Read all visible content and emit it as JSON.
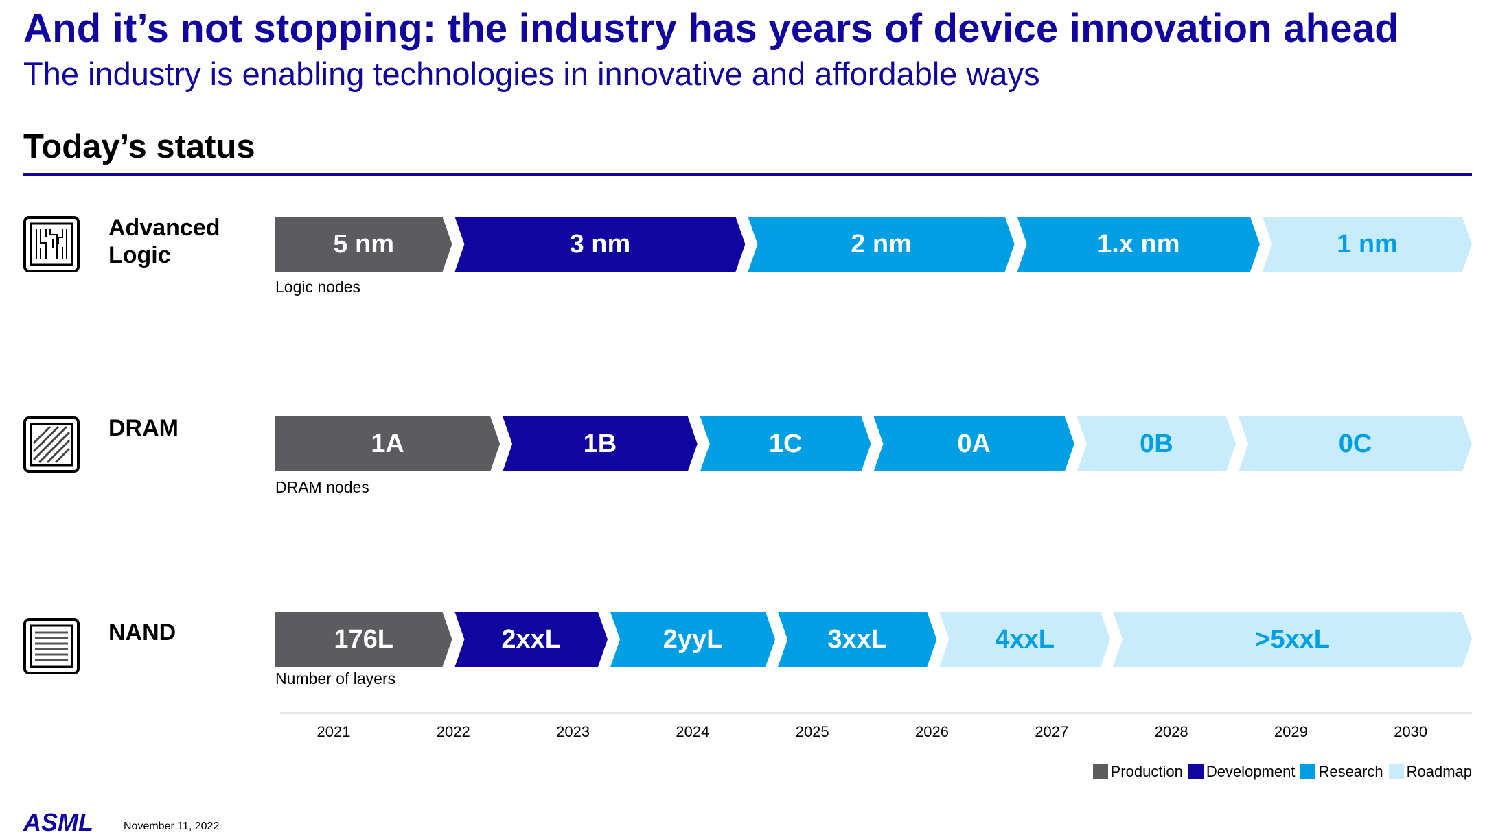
{
  "title": "And it’s not stopping: the industry has years of device innovation ahead",
  "subtitle": "The industry is enabling technologies in innovative and affordable ways",
  "section_heading": "Today’s status",
  "colors": {
    "production": "#5b5b60",
    "development": "#10069f",
    "research": "#009fe3",
    "roadmap": "#c8ecfb",
    "roadmap_text": "#009fe3",
    "brand": "#10069f"
  },
  "years": [
    "2021",
    "2022",
    "2023",
    "2024",
    "2025",
    "2026",
    "2027",
    "2028",
    "2029",
    "2030"
  ],
  "rows": [
    {
      "label": "Advanced\nLogic",
      "icon": "logic-chip-icon",
      "sub_label": "Logic nodes",
      "segments": [
        {
          "label": "5 nm",
          "status": "production",
          "start": 2021.0,
          "end": 2022.5
        },
        {
          "label": "3 nm",
          "status": "development",
          "start": 2022.5,
          "end": 2024.95
        },
        {
          "label": "2 nm",
          "status": "research",
          "start": 2024.95,
          "end": 2027.2
        },
        {
          "label": "1.x nm",
          "status": "research",
          "start": 2027.2,
          "end": 2029.25
        },
        {
          "label": "1 nm",
          "status": "roadmap",
          "start": 2029.25,
          "end": 2031.0
        }
      ]
    },
    {
      "label": "DRAM",
      "icon": "dram-chip-icon",
      "sub_label": "DRAM nodes",
      "segments": [
        {
          "label": "1A",
          "status": "production",
          "start": 2021.0,
          "end": 2022.9
        },
        {
          "label": "1B",
          "status": "development",
          "start": 2022.9,
          "end": 2024.55
        },
        {
          "label": "1C",
          "status": "research",
          "start": 2024.55,
          "end": 2026.0
        },
        {
          "label": "0A",
          "status": "research",
          "start": 2026.0,
          "end": 2027.7
        },
        {
          "label": "0B",
          "status": "roadmap",
          "start": 2027.7,
          "end": 2029.05
        },
        {
          "label": "0C",
          "status": "roadmap",
          "start": 2029.05,
          "end": 2031.0
        }
      ]
    },
    {
      "label": "NAND",
      "icon": "nand-chip-icon",
      "sub_label": "Number of layers",
      "segments": [
        {
          "label": "176L",
          "status": "production",
          "start": 2021.0,
          "end": 2022.5
        },
        {
          "label": "2xxL",
          "status": "development",
          "start": 2022.5,
          "end": 2023.8
        },
        {
          "label": "2yyL",
          "status": "research",
          "start": 2023.8,
          "end": 2025.2
        },
        {
          "label": "3xxL",
          "status": "research",
          "start": 2025.2,
          "end": 2026.55
        },
        {
          "label": "4xxL",
          "status": "roadmap",
          "start": 2026.55,
          "end": 2028.0
        },
        {
          "label": ">5xxL",
          "status": "roadmap",
          "start": 2028.0,
          "end": 2031.0
        }
      ]
    }
  ],
  "legend": [
    {
      "key": "production",
      "label": "Production"
    },
    {
      "key": "development",
      "label": "Development"
    },
    {
      "key": "research",
      "label": "Research"
    },
    {
      "key": "roadmap",
      "label": "Roadmap"
    }
  ],
  "footer": {
    "logo": "ASML",
    "date": "November 11, 2022"
  }
}
